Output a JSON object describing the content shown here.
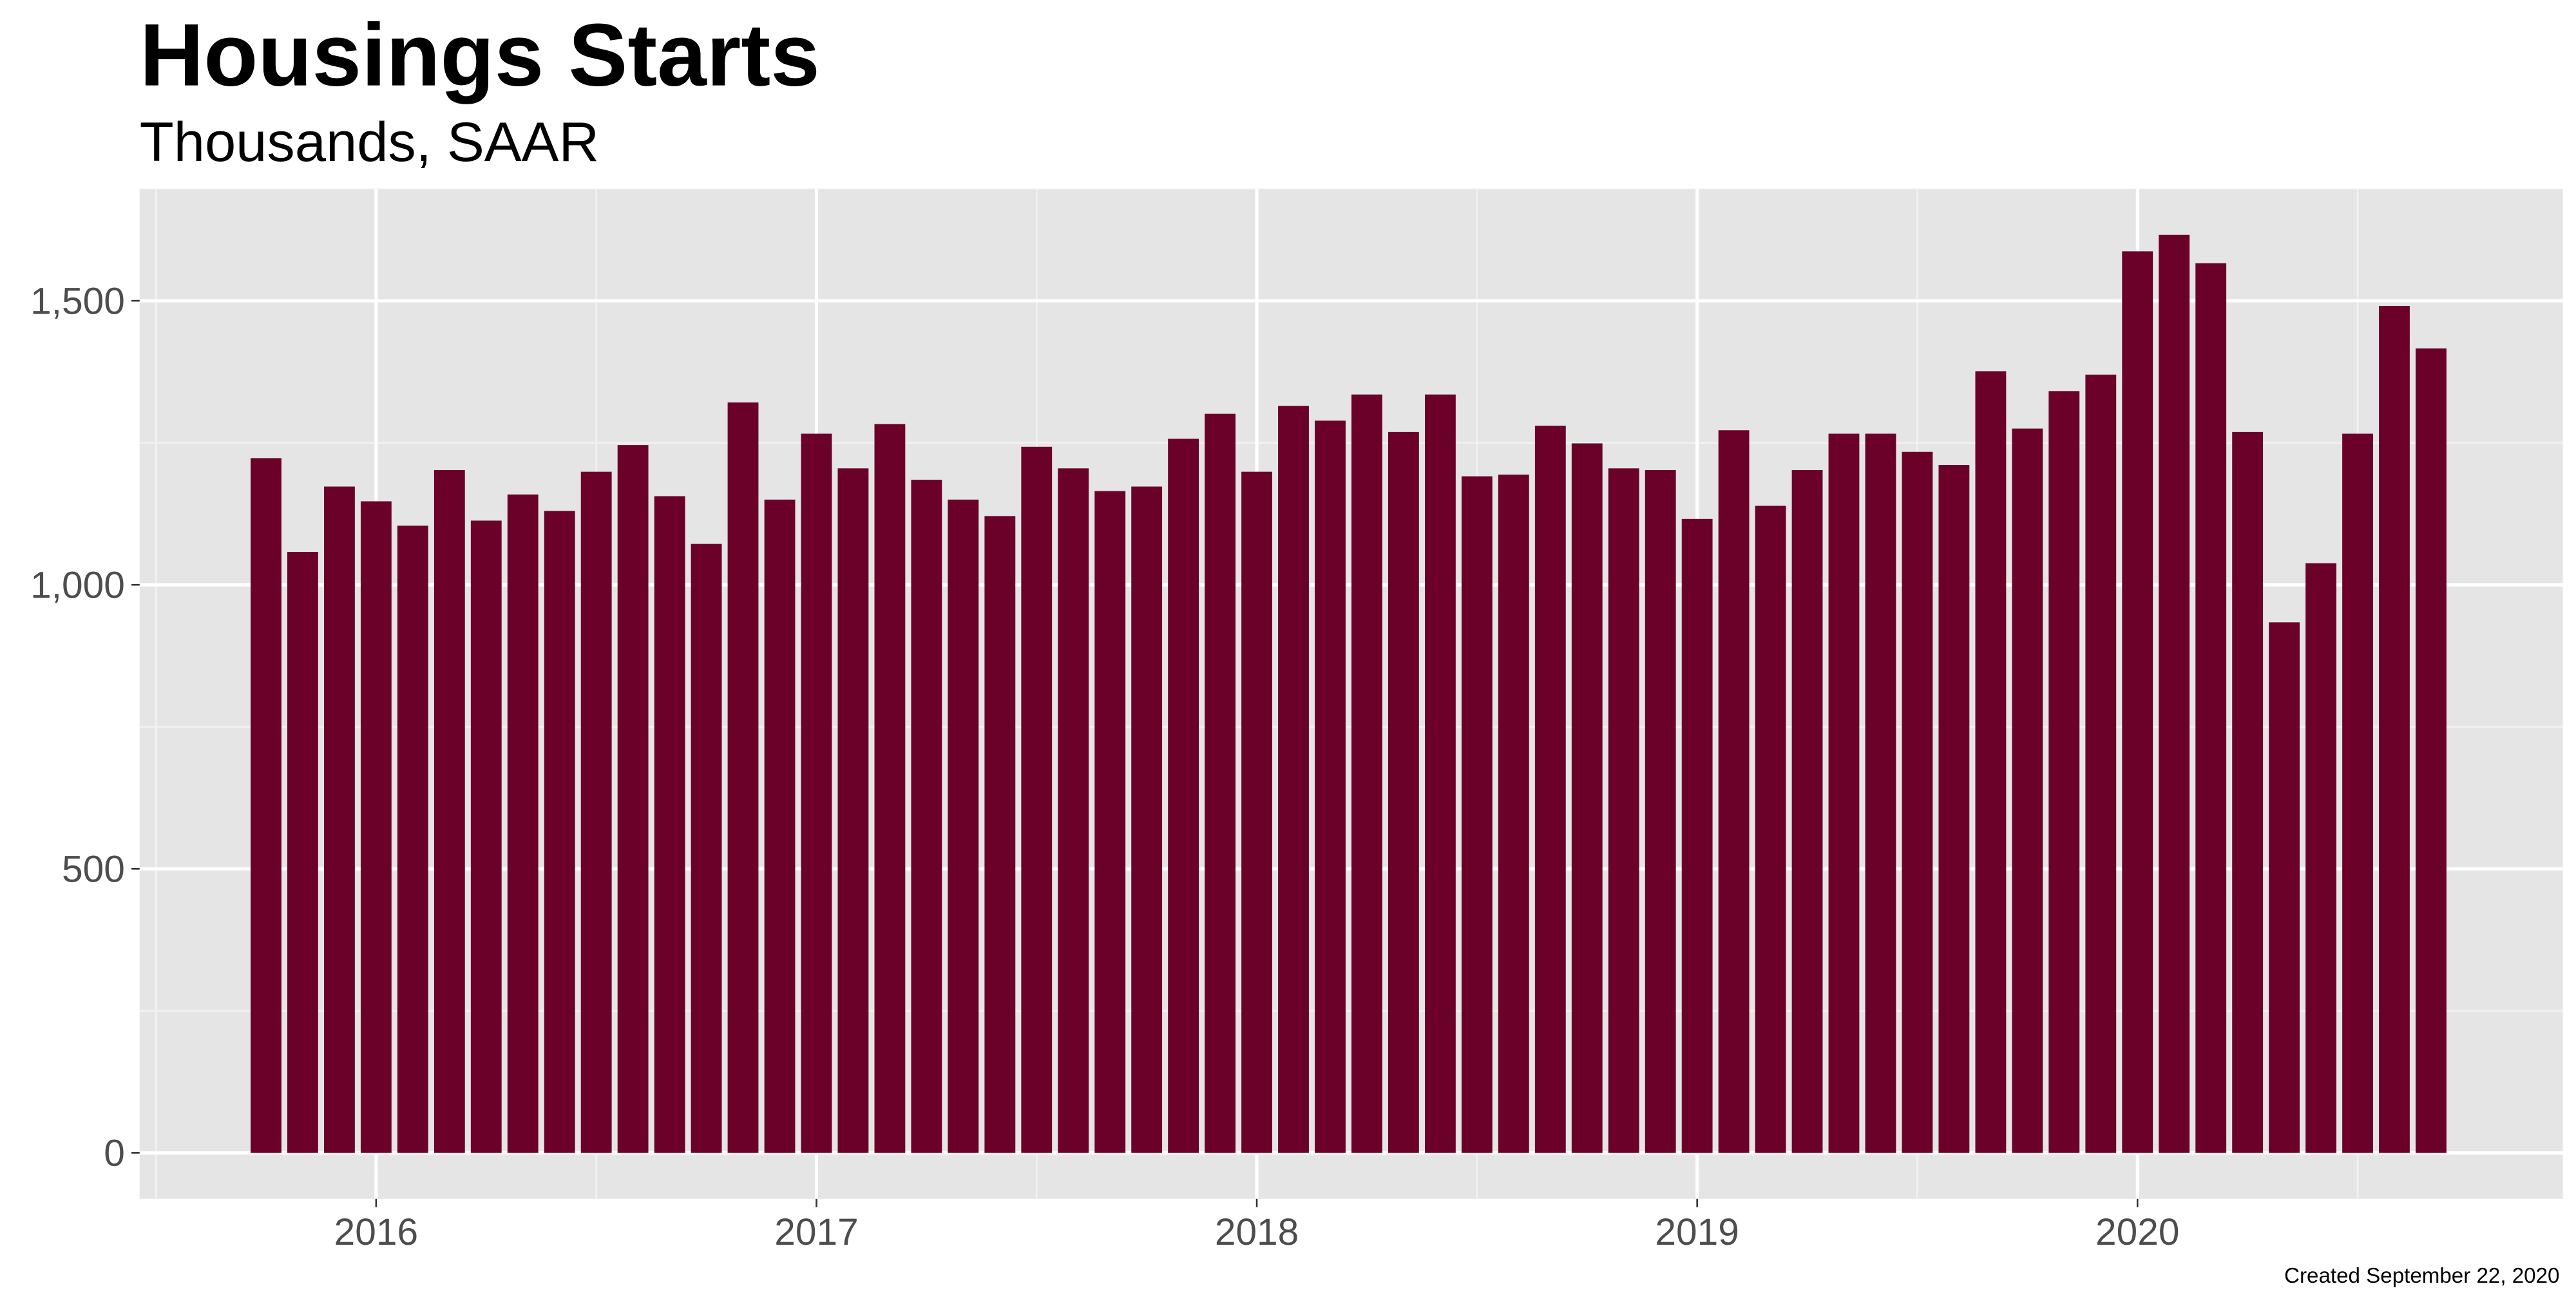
{
  "chart_data": {
    "type": "bar",
    "title": "Housings Starts",
    "subtitle": "Thousands, SAAR",
    "caption": "Created September 22, 2020",
    "x": [
      2015.75,
      2015.8333,
      2015.9167,
      2016.0,
      2016.0833,
      2016.1667,
      2016.25,
      2016.3333,
      2016.4167,
      2016.5,
      2016.5833,
      2016.6667,
      2016.75,
      2016.8333,
      2016.9167,
      2017.0,
      2017.0833,
      2017.1667,
      2017.25,
      2017.3333,
      2017.4167,
      2017.5,
      2017.5833,
      2017.6667,
      2017.75,
      2017.8333,
      2017.9167,
      2018.0,
      2018.0833,
      2018.1667,
      2018.25,
      2018.3333,
      2018.4167,
      2018.5,
      2018.5833,
      2018.6667,
      2018.75,
      2018.8333,
      2018.9167,
      2019.0,
      2019.0833,
      2019.1667,
      2019.25,
      2019.3333,
      2019.4167,
      2019.5,
      2019.5833,
      2019.6667,
      2019.75,
      2019.8333,
      2019.9167,
      2020.0,
      2020.0833,
      2020.1667,
      2020.25,
      2020.3333,
      2020.4167,
      2020.5,
      2020.5833,
      2020.6667
    ],
    "values": [
      1223,
      1058,
      1173,
      1147,
      1104,
      1202,
      1113,
      1159,
      1130,
      1199,
      1246,
      1156,
      1072,
      1321,
      1150,
      1266,
      1205,
      1283,
      1185,
      1150,
      1121,
      1243,
      1205,
      1165,
      1173,
      1257,
      1301,
      1199,
      1315,
      1289,
      1335,
      1269,
      1335,
      1191,
      1194,
      1280,
      1249,
      1205,
      1202,
      1116,
      1272,
      1139,
      1202,
      1266,
      1266,
      1234,
      1211,
      1376,
      1275,
      1341,
      1370,
      1587,
      1616,
      1566,
      1269,
      934,
      1038,
      1266,
      1491,
      1416
    ],
    "color": "#6b0029",
    "xlim": [
      2015.463,
      2020.966
    ],
    "xticks": [
      2016,
      2017,
      2018,
      2019,
      2020
    ],
    "ylim": [
      -81,
      1697
    ],
    "yticks": [
      0,
      {
        "value": 500,
        "label": "500"
      },
      {
        "value": 1000,
        "label": "1,000"
      },
      {
        "value": 1500,
        "label": "1,500"
      }
    ],
    "grid": true
  }
}
